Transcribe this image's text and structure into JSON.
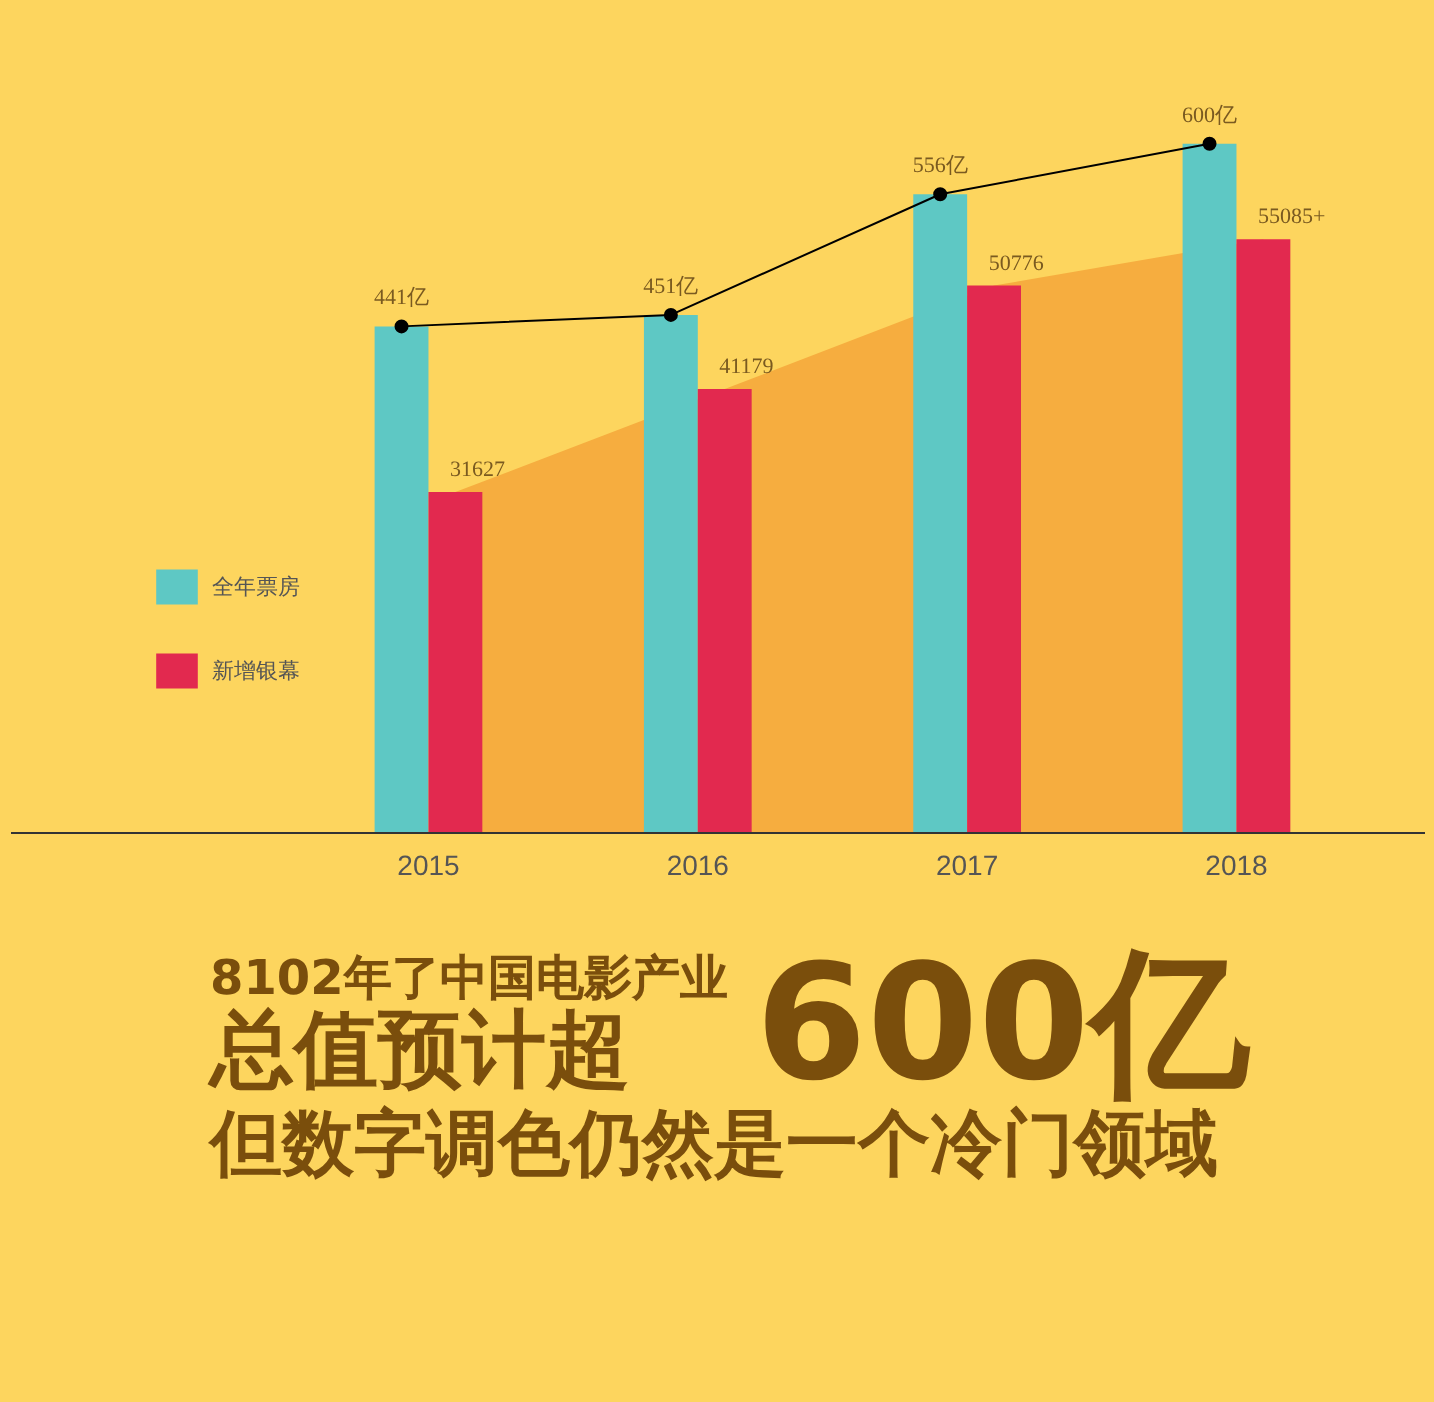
{
  "chart_data": {
    "type": "bar",
    "categories": [
      "2015",
      "2016",
      "2017",
      "2018"
    ],
    "series": [
      {
        "name": "全年票房",
        "color": "#5ec8c4",
        "values": [
          441,
          451,
          556,
          600
        ],
        "value_labels": [
          "441亿",
          "451亿",
          "556亿",
          "600亿"
        ]
      },
      {
        "name": "新增银幕",
        "axis": "y2",
        "color": "#e2294f",
        "values": [
          31627,
          41179,
          50776,
          55085
        ],
        "value_labels": [
          "31627",
          "41179",
          "50776",
          "55085+"
        ]
      },
      {
        "type": "area",
        "axis": "y2",
        "color": "#f6ad3f",
        "values": [
          31627,
          41179,
          50776,
          55085
        ]
      },
      {
        "type": "line",
        "color": "#000000",
        "values": [
          441,
          451,
          556,
          600
        ],
        "marker": "circle"
      }
    ],
    "legend": "left",
    "grid": false,
    "annotations": [
      "8102年了中国电影产业",
      "总值预计超",
      "600亿",
      "但数字调色仍然是一个冷门领域"
    ]
  }
}
